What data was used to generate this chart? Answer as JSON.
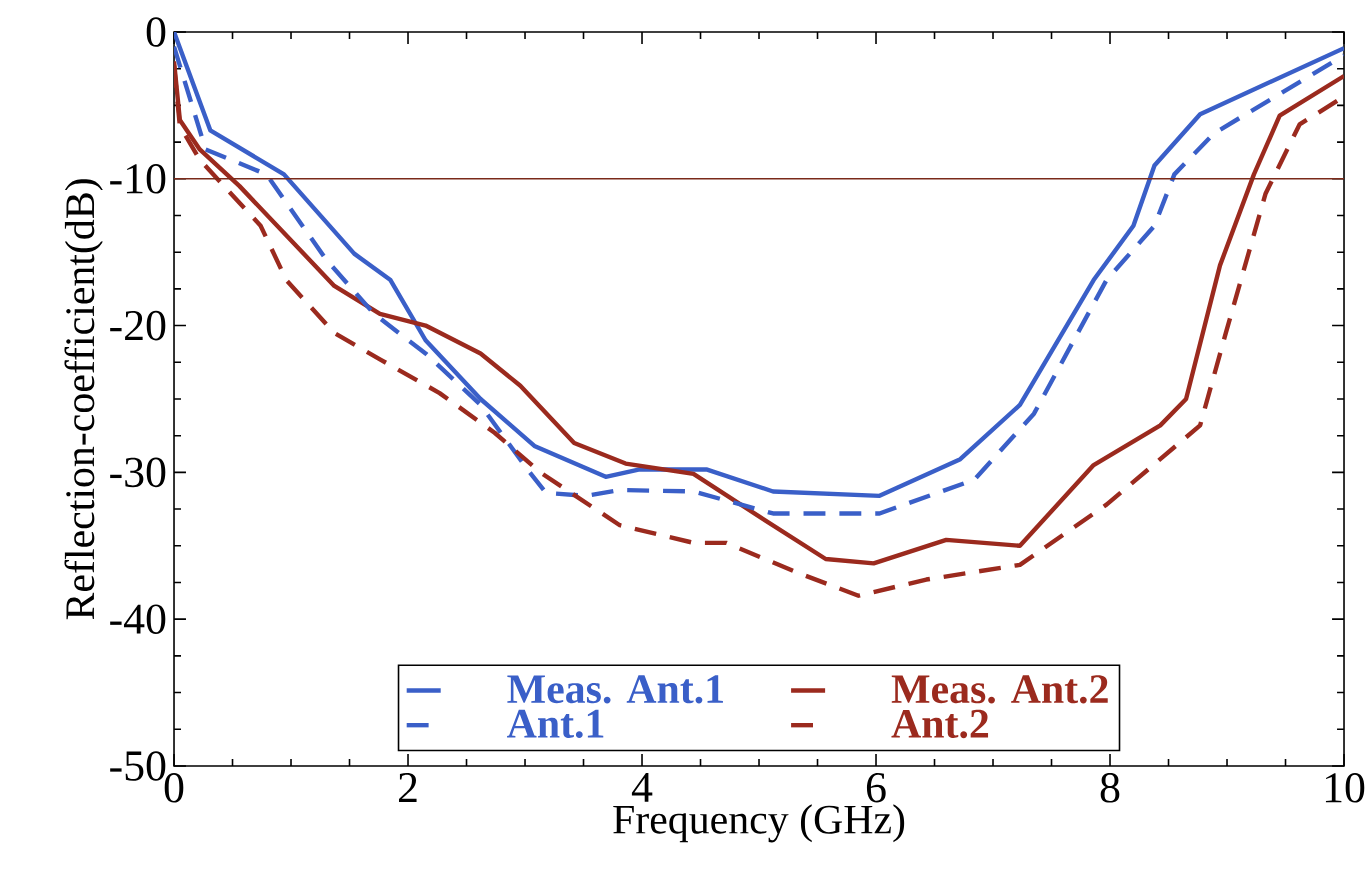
{
  "chart_data": {
    "type": "line",
    "xlabel": "Frequency (GHz)",
    "ylabel": "Reflection-coefficient(dB)",
    "xlim": [
      0,
      10
    ],
    "ylim": [
      -50,
      0
    ],
    "xticks": [
      0,
      2,
      4,
      6,
      8,
      10
    ],
    "yticks": [
      -50,
      -40,
      -30,
      -20,
      -10,
      0
    ],
    "legend": "bottom",
    "grid": false,
    "marker": "none",
    "ref_lines": [
      {
        "axis": "y",
        "value": -10,
        "color": "#7a2a1a"
      }
    ],
    "series": [
      {
        "name": "Meas. Ant.1",
        "color": "#3a5fc8",
        "line_style": "solid",
        "x": [
          0,
          0.31,
          0.94,
          1.54,
          1.85,
          2.15,
          2.62,
          3.08,
          3.69,
          3.98,
          4.55,
          5.12,
          6.03,
          6.72,
          7.23,
          7.86,
          8.2,
          8.38,
          8.77,
          10
        ],
        "values": [
          0,
          -6.7,
          -9.7,
          -15.1,
          -16.9,
          -21,
          -25,
          -28.2,
          -30.3,
          -29.8,
          -29.8,
          -31.3,
          -31.6,
          -29.1,
          -25.4,
          -16.9,
          -13.2,
          -9.1,
          -5.6,
          -1.1
        ]
      },
      {
        "name": "Ant.1",
        "color": "#3a5fc8",
        "line_style": "dashed",
        "x": [
          0,
          0.27,
          0.79,
          1.3,
          1.71,
          2.15,
          2.62,
          3.04,
          3.18,
          3.52,
          3.81,
          4.44,
          5.12,
          6.03,
          6.84,
          7.35,
          7.97,
          8.38,
          8.55,
          8.89,
          10
        ],
        "values": [
          -1,
          -8,
          -9.7,
          -15.5,
          -19.2,
          -21.9,
          -25.4,
          -30,
          -31.4,
          -31.6,
          -31.2,
          -31.3,
          -32.8,
          -32.8,
          -30.5,
          -26,
          -16.9,
          -13.2,
          -9.7,
          -6.9,
          -1.6
        ]
      },
      {
        "name": "Meas. Ant.2",
        "color": "#9b2a1e",
        "line_style": "solid",
        "x": [
          0,
          0.05,
          0.22,
          0.56,
          1.37,
          1.76,
          2.15,
          2.62,
          2.96,
          3.42,
          3.86,
          4.44,
          5.0,
          5.57,
          5.98,
          6.6,
          7.23,
          7.86,
          8.43,
          8.65,
          8.94,
          9.23,
          9.45,
          10
        ],
        "values": [
          -2,
          -6,
          -8,
          -10.5,
          -17.3,
          -19.2,
          -20,
          -21.9,
          -24.1,
          -28,
          -29.4,
          -30.1,
          -33,
          -35.9,
          -36.2,
          -34.6,
          -35,
          -29.5,
          -26.8,
          -25,
          -15.9,
          -9.7,
          -5.7,
          -3
        ]
      },
      {
        "name": "Ant.2",
        "color": "#9b2a1e",
        "line_style": "dashed",
        "x": [
          0,
          0.05,
          0.22,
          0.74,
          0.96,
          1.37,
          1.76,
          2.27,
          2.74,
          3.13,
          3.81,
          4.44,
          4.72,
          5.35,
          5.85,
          6.43,
          7.23,
          7.97,
          8.77,
          8.99,
          9.33,
          9.62,
          10
        ],
        "values": [
          -2.3,
          -6.4,
          -8.7,
          -13.2,
          -16.9,
          -20.5,
          -22.3,
          -24.6,
          -27.3,
          -30,
          -33.6,
          -34.8,
          -34.8,
          -36.9,
          -38.4,
          -37.3,
          -36.3,
          -32.2,
          -26.8,
          -20.5,
          -11,
          -6.3,
          -4.4
        ]
      }
    ]
  }
}
